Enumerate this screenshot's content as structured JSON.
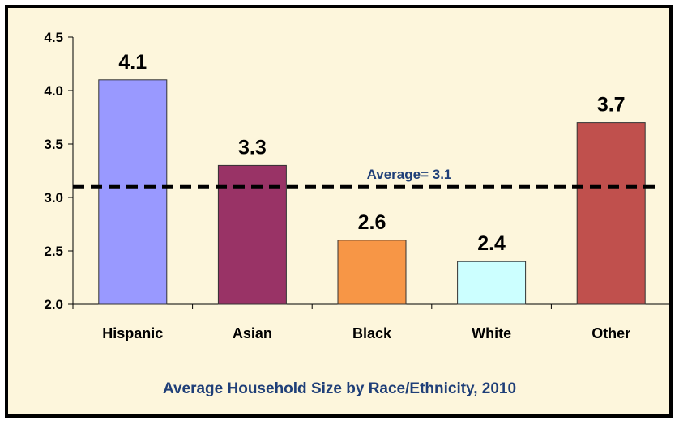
{
  "chart_data": {
    "type": "bar",
    "title": "Average Household Size by Race/Ethnicity, 2010",
    "categories": [
      "Hispanic",
      "Asian",
      "Black",
      "White",
      "Other"
    ],
    "values": [
      4.1,
      3.3,
      2.6,
      2.4,
      3.7
    ],
    "value_labels": [
      "4.1",
      "3.3",
      "2.6",
      "2.4",
      "3.7"
    ],
    "colors": [
      "#9999ff",
      "#993366",
      "#f79646",
      "#ccffff",
      "#c0504d"
    ],
    "ylim": [
      2.0,
      4.5
    ],
    "yticks": [
      "2.0",
      "2.5",
      "3.0",
      "3.5",
      "4.0",
      "4.5"
    ],
    "xlabel": "",
    "ylabel": "",
    "legend": "none",
    "reference_line": {
      "value": 3.1,
      "label": "Average= 3.1",
      "style": "dashed"
    },
    "colors_meta": {
      "background": "#fdf6dc",
      "title_color": "#1f3f78"
    }
  }
}
